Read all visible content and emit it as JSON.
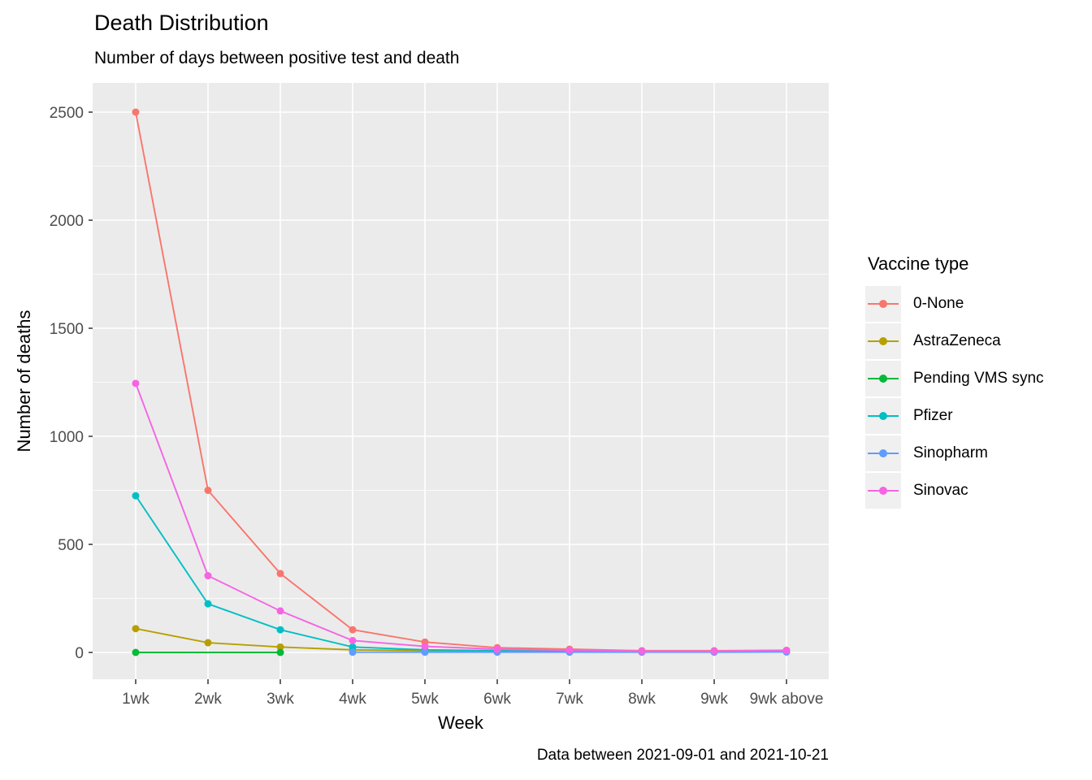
{
  "chart_data": {
    "type": "line",
    "title": "Death Distribution",
    "subtitle": "Number of days between positive test and death",
    "caption": "Data between 2021-09-01 and 2021-10-21",
    "xlabel": "Week",
    "ylabel": "Number of deaths",
    "legend_title": "Vaccine type",
    "legend_position": "right",
    "grid": true,
    "panel_bg": "#EBEBEB",
    "grid_color": "#FFFFFF",
    "tick_text_color": "#4D4D4D",
    "tick_mark_color": "#333333",
    "categories": [
      "1wk",
      "2wk",
      "3wk",
      "4wk",
      "5wk",
      "6wk",
      "7wk",
      "8wk",
      "9wk",
      "9wk above"
    ],
    "y_ticks": [
      0,
      500,
      1000,
      1500,
      2000,
      2500
    ],
    "ylim": [
      0,
      2500
    ],
    "series": [
      {
        "name": "0-None",
        "color": "#F8766D",
        "values": [
          2500,
          750,
          365,
          105,
          48,
          22,
          15,
          8,
          8,
          10
        ]
      },
      {
        "name": "AstraZeneca",
        "color": "#B79F00",
        "values": [
          110,
          45,
          25,
          12,
          8,
          4,
          3,
          2,
          2,
          4
        ]
      },
      {
        "name": "Pending VMS sync",
        "color": "#00BA38",
        "values": [
          0,
          null,
          0,
          null,
          null,
          null,
          null,
          null,
          null,
          null
        ]
      },
      {
        "name": "Pfizer",
        "color": "#00BFC4",
        "values": [
          725,
          225,
          105,
          25,
          12,
          8,
          5,
          3,
          3,
          5
        ]
      },
      {
        "name": "Sinopharm",
        "color": "#619CFF",
        "values": [
          null,
          null,
          null,
          1,
          1,
          1,
          1,
          1,
          1,
          2
        ]
      },
      {
        "name": "Sinovac",
        "color": "#F564E3",
        "values": [
          1245,
          355,
          192,
          55,
          28,
          15,
          10,
          6,
          6,
          9
        ]
      }
    ]
  }
}
